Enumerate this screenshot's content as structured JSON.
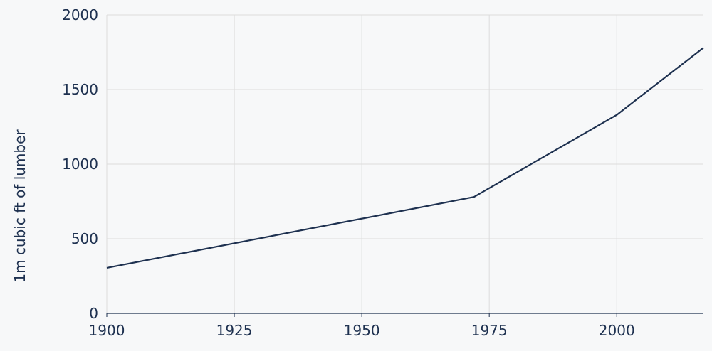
{
  "chart_data": {
    "type": "line",
    "title": "",
    "xlabel": "",
    "ylabel": "1m cubic ft of lumber",
    "xlim": [
      1900,
      2017
    ],
    "ylim": [
      0,
      2000
    ],
    "x_ticks": [
      1900,
      1925,
      1950,
      1975,
      2000
    ],
    "y_ticks": [
      0,
      500,
      1000,
      1500,
      2000
    ],
    "grid": true,
    "series": [
      {
        "x": [
          1900,
          1972,
          2000,
          2017
        ],
        "values": [
          305,
          780,
          1330,
          1780
        ]
      }
    ],
    "colors": {
      "line": "#1e3150",
      "grid": "#dcdcdc",
      "axis": "#1e3150",
      "text": "#1e3150",
      "background": "#f7f8f9"
    }
  }
}
